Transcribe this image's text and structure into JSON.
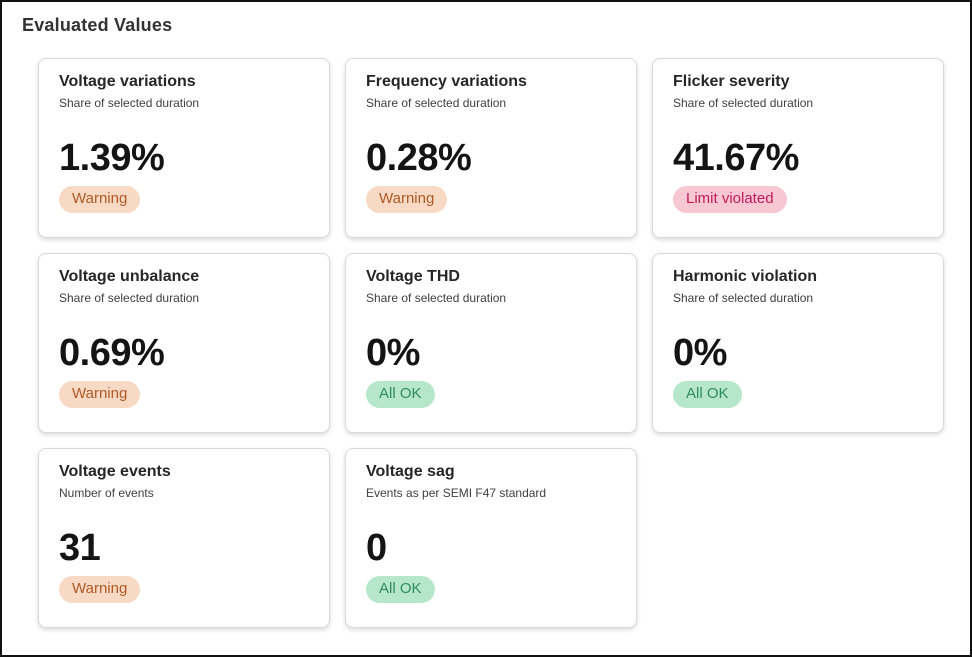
{
  "page": {
    "title": "Evaluated Values"
  },
  "status_colors": {
    "warning": {
      "bg": "#f8d9c3",
      "text": "#ae5a27"
    },
    "violated": {
      "bg": "#f7c8d4",
      "text": "#c01a5a"
    },
    "ok": {
      "bg": "#b7e7cb",
      "text": "#2f8b62"
    }
  },
  "cards": [
    {
      "title": "Voltage variations",
      "subtitle": "Share of selected duration",
      "value": "1.39%",
      "status": "Warning",
      "status_type": "warning"
    },
    {
      "title": "Frequency variations",
      "subtitle": "Share of selected duration",
      "value": "0.28%",
      "status": "Warning",
      "status_type": "warning"
    },
    {
      "title": "Flicker severity",
      "subtitle": "Share of selected duration",
      "value": "41.67%",
      "status": "Limit violated",
      "status_type": "violated"
    },
    {
      "title": "Voltage unbalance",
      "subtitle": "Share of selected duration",
      "value": "0.69%",
      "status": "Warning",
      "status_type": "warning"
    },
    {
      "title": "Voltage THD",
      "subtitle": "Share of selected duration",
      "value": "0%",
      "status": "All OK",
      "status_type": "ok"
    },
    {
      "title": "Harmonic violation",
      "subtitle": "Share of selected duration",
      "value": "0%",
      "status": "All OK",
      "status_type": "ok"
    },
    {
      "title": "Voltage events",
      "subtitle": "Number of events",
      "value": "31",
      "status": "Warning",
      "status_type": "warning"
    },
    {
      "title": "Voltage sag",
      "subtitle": "Events as per SEMI F47 standard",
      "value": "0",
      "status": "All OK",
      "status_type": "ok"
    }
  ]
}
